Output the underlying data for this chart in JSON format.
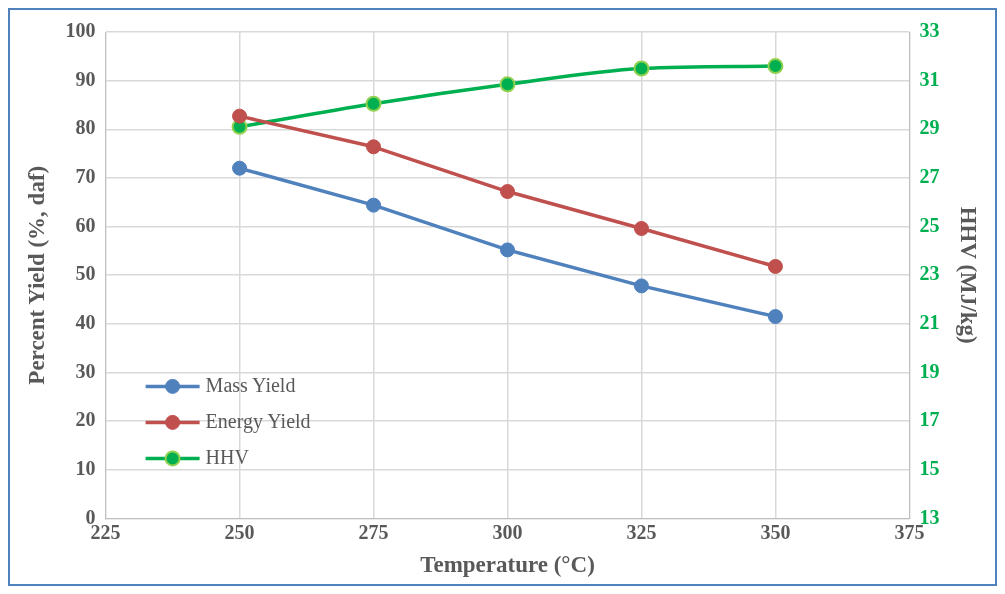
{
  "chart_data": {
    "type": "line",
    "xlabel": "Temperature (°C)",
    "ylabel": "Percent Yield (%, daf)",
    "y2label": "HHV (MJ/kg)",
    "x": [
      250,
      275,
      300,
      325,
      350
    ],
    "xlim": [
      225,
      375
    ],
    "xticks": [
      225,
      250,
      275,
      300,
      325,
      350,
      375
    ],
    "ylim": [
      0,
      100
    ],
    "yticks": [
      0,
      10,
      20,
      30,
      40,
      50,
      60,
      70,
      80,
      90,
      100
    ],
    "y2lim": [
      13,
      33
    ],
    "y2ticks": [
      13,
      15,
      17,
      19,
      21,
      23,
      25,
      27,
      29,
      31,
      33
    ],
    "grid": true,
    "legend": "bottom left",
    "marker": "circle",
    "line_style": "solid",
    "series": [
      {
        "name": "Mass Yield",
        "color": "#4f81bd",
        "values": [
          72.0,
          64.4,
          55.2,
          47.8,
          41.5
        ]
      },
      {
        "name": "Energy Yield",
        "color": "#c0504d",
        "values": [
          82.7,
          76.4,
          67.2,
          59.6,
          51.8
        ]
      },
      {
        "name": "HHV",
        "color": "#00b050",
        "axis": "y2",
        "values": [
          29.1,
          30.05,
          30.85,
          31.5,
          31.6
        ]
      }
    ]
  }
}
